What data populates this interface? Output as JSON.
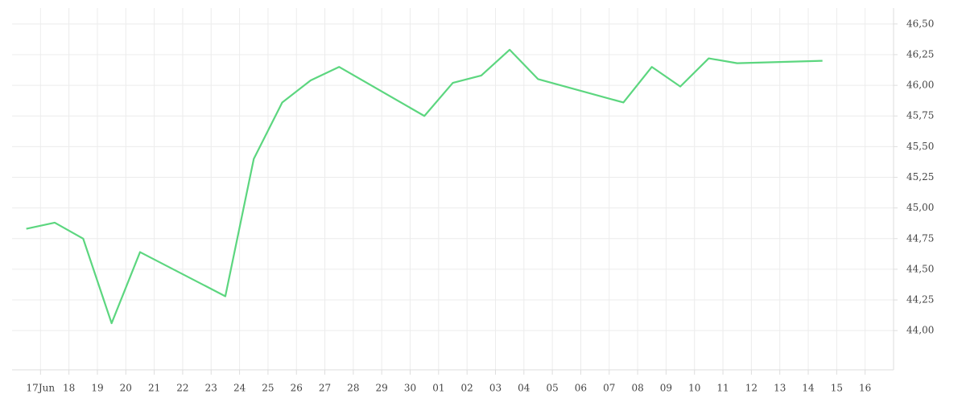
{
  "chart_data": {
    "type": "line",
    "xlim": [
      -1,
      30
    ],
    "xticks": [
      {
        "value": 0,
        "label": "17Jun"
      },
      {
        "value": 1,
        "label": "18"
      },
      {
        "value": 2,
        "label": "19"
      },
      {
        "value": 3,
        "label": "20"
      },
      {
        "value": 4,
        "label": "21"
      },
      {
        "value": 5,
        "label": "22"
      },
      {
        "value": 6,
        "label": "23"
      },
      {
        "value": 7,
        "label": "24"
      },
      {
        "value": 8,
        "label": "25"
      },
      {
        "value": 9,
        "label": "26"
      },
      {
        "value": 10,
        "label": "27"
      },
      {
        "value": 11,
        "label": "28"
      },
      {
        "value": 12,
        "label": "29"
      },
      {
        "value": 13,
        "label": "30"
      },
      {
        "value": 14,
        "label": "01"
      },
      {
        "value": 15,
        "label": "02"
      },
      {
        "value": 16,
        "label": "03"
      },
      {
        "value": 17,
        "label": "04"
      },
      {
        "value": 18,
        "label": "05"
      },
      {
        "value": 19,
        "label": "06"
      },
      {
        "value": 20,
        "label": "07"
      },
      {
        "value": 21,
        "label": "08"
      },
      {
        "value": 22,
        "label": "09"
      },
      {
        "value": 23,
        "label": "10"
      },
      {
        "value": 24,
        "label": "11"
      },
      {
        "value": 25,
        "label": "12"
      },
      {
        "value": 26,
        "label": "13"
      },
      {
        "value": 27,
        "label": "14"
      },
      {
        "value": 28,
        "label": "15"
      },
      {
        "value": 29,
        "label": "16"
      }
    ],
    "ylim": [
      43.68,
      46.63
    ],
    "yticks": [
      {
        "value": 44,
        "label": "44,00"
      },
      {
        "value": 44.25,
        "label": "44,25"
      },
      {
        "value": 44.5,
        "label": "44,50"
      },
      {
        "value": 44.75,
        "label": "44,75"
      },
      {
        "value": 45,
        "label": "45,00"
      },
      {
        "value": 45.25,
        "label": "45,25"
      },
      {
        "value": 45.5,
        "label": "45,50"
      },
      {
        "value": 45.75,
        "label": "45,75"
      },
      {
        "value": 46,
        "label": "46,00"
      },
      {
        "value": 46.25,
        "label": "46,25"
      },
      {
        "value": 46.5,
        "label": "46,50"
      }
    ],
    "grid": true,
    "x": [
      -0.5,
      0.5,
      1.5,
      2.5,
      3.5,
      6.5,
      7.5,
      8.5,
      9.5,
      10.5,
      13.5,
      14.5,
      15.5,
      16.5,
      17.5,
      20.5,
      21.5,
      22.5,
      23.5,
      24.5,
      27.5
    ],
    "color": "#5cd67f",
    "values": [
      44.83,
      44.88,
      44.75,
      44.06,
      44.64,
      44.28,
      45.4,
      45.86,
      46.04,
      46.15,
      45.75,
      46.02,
      46.08,
      46.29,
      46.05,
      45.86,
      46.15,
      45.99,
      46.22,
      46.18,
      46.2
    ]
  }
}
